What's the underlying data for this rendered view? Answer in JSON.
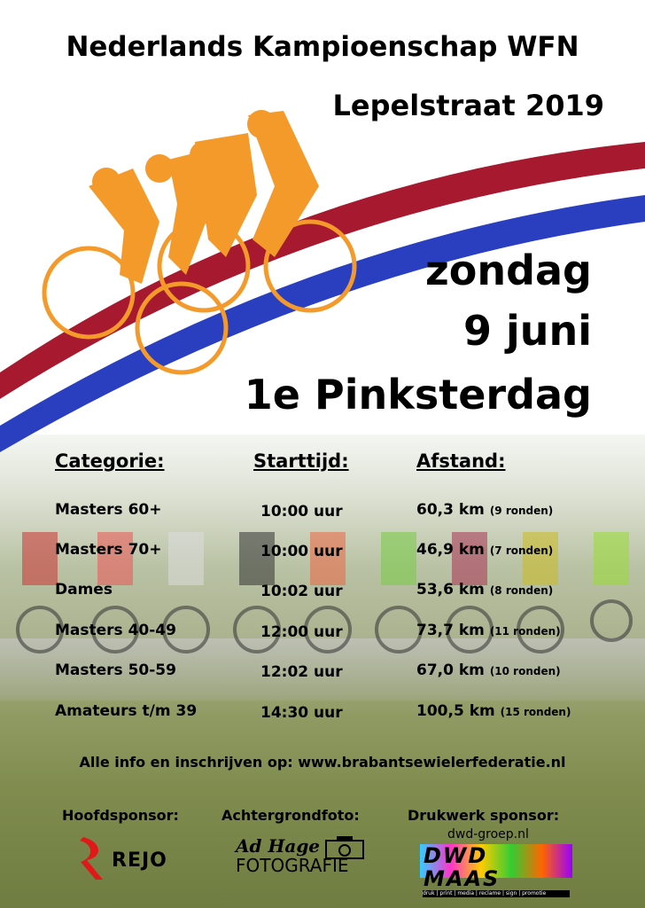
{
  "header": {
    "title": "Nederlands Kampioenschap WFN",
    "subtitle": "Lepelstraat 2019"
  },
  "date": {
    "day": "zondag",
    "date": "9 juni",
    "holiday": "1e Pinksterdag"
  },
  "colors": {
    "flag_red": "#a6192e",
    "flag_blue": "#2a3fbf",
    "cyclist_orange": "#f39a2b"
  },
  "table": {
    "headers": [
      "Categorie:",
      "Starttijd:",
      "Afstand:"
    ],
    "rows": [
      {
        "category": "Masters 60+",
        "time": "10:00 uur",
        "distance": "60,3 km",
        "laps": "(9 ronden)"
      },
      {
        "category": "Masters 70+",
        "time": "10:00 uur",
        "distance": "46,9 km",
        "laps": "(7 ronden)"
      },
      {
        "category": "Dames",
        "time": "10:02 uur",
        "distance": "53,6 km",
        "laps": "(8 ronden)"
      },
      {
        "category": "Masters 40-49",
        "time": "12:00 uur",
        "distance": "73,7 km",
        "laps": "(11 ronden)"
      },
      {
        "category": "Masters 50-59",
        "time": "12:02 uur",
        "distance": "67,0 km",
        "laps": "(10 ronden)"
      },
      {
        "category": "Amateurs t/m 39",
        "time": "14:30 uur",
        "distance": "100,5 km",
        "laps": "(15 ronden)"
      }
    ]
  },
  "info": "Alle info en inschrijven op: www.brabantsewielerfederatie.nl",
  "sponsors": {
    "main_label": "Hoofdsponsor:",
    "main_logo": "REJO",
    "photo_label": "Achtergrondfoto:",
    "photo_logo_top": "Ad Hage",
    "photo_logo_bottom": "FOTOGRAFIE",
    "print_label": "Drukwerk sponsor:",
    "print_url": "dwd-groep.nl",
    "print_logo": "DWD MAAS",
    "print_tagline": "druk | print | media | reclame | sign | promotie"
  }
}
